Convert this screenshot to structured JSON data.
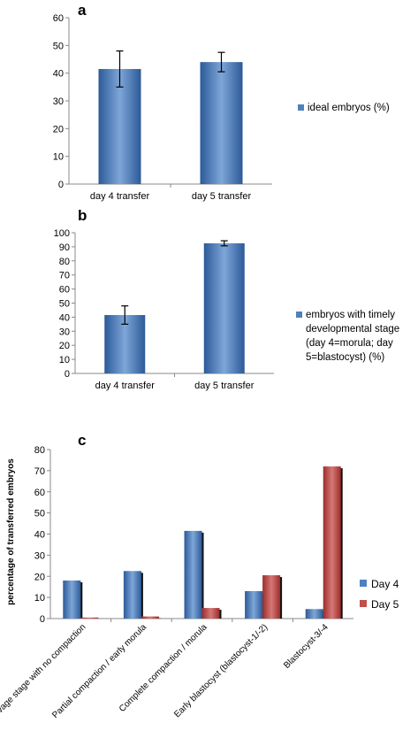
{
  "panels": [
    {
      "panel_label": "a",
      "legend_lines": [
        "ideal embryos (%)"
      ]
    },
    {
      "panel_label": "b",
      "legend_lines": [
        "embryos with timely",
        "developmental stage",
        "(day 4=morula; day",
        "5=blastocyst) (%)"
      ]
    },
    {
      "panel_label": "c",
      "legend_lines": []
    }
  ],
  "colors": {
    "blue": "#4f81bd",
    "blue_light": "#7ea6d8",
    "blue_dark": "#2c5a98",
    "red": "#c0504d",
    "red_light": "#d67876",
    "red_dark": "#9b2d2a",
    "axis": "#888888",
    "bar_shadow": "#111111"
  },
  "chart_data": [
    {
      "type": "bar",
      "categories": [
        "day 4 transfer",
        "day 5 transfer"
      ],
      "series": [
        {
          "name": "ideal embryos (%)",
          "values": [
            41.5,
            44
          ],
          "error": [
            6.5,
            3.5
          ]
        }
      ],
      "xlabel": "",
      "ylabel": "",
      "ylim": [
        0,
        60
      ],
      "yticks": [
        0,
        10,
        20,
        30,
        40,
        50,
        60
      ],
      "grid": false,
      "legend": "right"
    },
    {
      "type": "bar",
      "categories": [
        "day 4 transfer",
        "day 5 transfer"
      ],
      "series": [
        {
          "name": "embryos with timely developmental stage (day 4=morula; day 5=blastocyst) (%)",
          "values": [
            41.5,
            92.5
          ],
          "error": [
            6.5,
            1.8
          ]
        }
      ],
      "xlabel": "",
      "ylabel": "",
      "ylim": [
        0,
        100
      ],
      "yticks": [
        0,
        10,
        20,
        30,
        40,
        50,
        60,
        70,
        80,
        90,
        100
      ],
      "grid": false,
      "legend": "right"
    },
    {
      "type": "bar",
      "categories": [
        "Cleavage stage with no compaction",
        "Partial compaction / early morula",
        "Complete compaction / morula",
        "Early blastocyst (blastocyst-1/-2)",
        "Blastocyst-3/-4"
      ],
      "series": [
        {
          "name": "Day 4",
          "values": [
            18,
            22.5,
            41.5,
            13,
            4.5
          ]
        },
        {
          "name": "Day 5",
          "values": [
            0.5,
            1,
            5,
            20.5,
            72
          ]
        }
      ],
      "xlabel": "",
      "ylabel": "percentage of transferred embryos",
      "ylim": [
        0,
        80
      ],
      "yticks": [
        0,
        10,
        20,
        30,
        40,
        50,
        60,
        70,
        80
      ],
      "grid": false,
      "legend": "right"
    }
  ]
}
